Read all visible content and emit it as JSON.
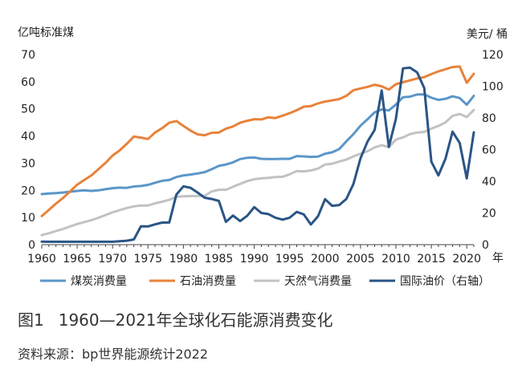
{
  "chart_data": {
    "type": "line",
    "title": "1960—2021年全球化石能源消费变化",
    "figure_number": "图1",
    "source": "资料来源：bp世界能源统计2022",
    "left_unit": "亿吨标准煤",
    "right_unit": "美元/ 桶",
    "x_unit": "年",
    "x_ticks": [
      1960,
      1965,
      1970,
      1975,
      1980,
      1985,
      1990,
      1995,
      2000,
      2005,
      2010,
      2015,
      2020
    ],
    "x_range": [
      1960,
      2021
    ],
    "y_left_range": [
      0,
      70
    ],
    "y_left_ticks": [
      0,
      10,
      20,
      30,
      40,
      50,
      60,
      70
    ],
    "y_right_range": [
      0,
      120
    ],
    "y_right_ticks": [
      0,
      20,
      40,
      60,
      80,
      100,
      120
    ],
    "years": [
      1960,
      1961,
      1962,
      1963,
      1964,
      1965,
      1966,
      1967,
      1968,
      1969,
      1970,
      1971,
      1972,
      1973,
      1974,
      1975,
      1976,
      1977,
      1978,
      1979,
      1980,
      1981,
      1982,
      1983,
      1984,
      1985,
      1986,
      1987,
      1988,
      1989,
      1990,
      1991,
      1992,
      1993,
      1994,
      1995,
      1996,
      1997,
      1998,
      1999,
      2000,
      2001,
      2002,
      2003,
      2004,
      2005,
      2006,
      2007,
      2008,
      2009,
      2010,
      2011,
      2012,
      2013,
      2014,
      2015,
      2016,
      2017,
      2018,
      2019,
      2020,
      2021
    ],
    "series": [
      {
        "name": "煤炭消费量",
        "axis": "left",
        "color": "#5b96c8",
        "values": [
          18.6,
          18.8,
          19.0,
          19.2,
          19.5,
          19.8,
          20.0,
          19.8,
          20.0,
          20.4,
          20.8,
          21.0,
          20.9,
          21.4,
          21.6,
          22.0,
          22.8,
          23.5,
          23.8,
          24.9,
          25.5,
          25.8,
          26.2,
          26.7,
          27.8,
          29.0,
          29.5,
          30.3,
          31.5,
          32.0,
          32.1,
          31.6,
          31.5,
          31.5,
          31.6,
          31.6,
          32.6,
          32.5,
          32.3,
          32.4,
          33.5,
          34.0,
          35.2,
          38.0,
          40.7,
          43.8,
          46.2,
          48.7,
          49.8,
          49.4,
          51.6,
          54.3,
          54.5,
          55.3,
          55.3,
          54.1,
          53.3,
          53.7,
          54.6,
          54.0,
          51.5,
          54.8
        ]
      },
      {
        "name": "石油消费量",
        "axis": "left",
        "color": "#e8823a",
        "values": [
          10.5,
          12.8,
          15.1,
          17.2,
          19.6,
          22.1,
          23.8,
          25.5,
          27.8,
          30.1,
          32.8,
          34.7,
          37.1,
          39.8,
          39.4,
          38.9,
          41.3,
          42.9,
          44.9,
          45.5,
          43.7,
          42.0,
          40.6,
          40.3,
          41.2,
          41.3,
          42.7,
          43.5,
          44.9,
          45.6,
          46.2,
          46.1,
          46.9,
          46.6,
          47.5,
          48.4,
          49.5,
          50.8,
          51.0,
          52.0,
          52.7,
          53.1,
          53.6,
          54.8,
          56.9,
          57.5,
          58.1,
          58.9,
          58.3,
          57.1,
          59.1,
          59.8,
          60.5,
          61.2,
          61.7,
          62.8,
          63.8,
          64.6,
          65.4,
          65.6,
          59.6,
          62.9
        ]
      },
      {
        "name": "天然气消费量",
        "axis": "left",
        "color": "#c2c2c2",
        "values": [
          3.5,
          4.2,
          5.0,
          5.8,
          6.7,
          7.6,
          8.3,
          9.0,
          9.9,
          10.9,
          11.9,
          12.7,
          13.5,
          14.1,
          14.4,
          14.4,
          15.2,
          15.8,
          16.5,
          17.6,
          17.8,
          17.9,
          17.9,
          18.0,
          19.6,
          20.2,
          20.2,
          21.3,
          22.4,
          23.4,
          24.1,
          24.4,
          24.6,
          24.9,
          25.0,
          25.9,
          27.1,
          27.0,
          27.3,
          28.0,
          29.5,
          29.8,
          30.6,
          31.3,
          32.5,
          33.5,
          34.4,
          35.8,
          36.6,
          35.9,
          38.7,
          39.5,
          40.7,
          41.3,
          41.5,
          42.7,
          43.7,
          45.0,
          47.4,
          48.1,
          47.0,
          49.6
        ]
      },
      {
        "name": "国际油价（右轴）",
        "axis": "right",
        "color": "#2a5585",
        "values": [
          1.9,
          1.8,
          1.8,
          1.8,
          1.8,
          1.8,
          1.8,
          1.8,
          1.8,
          1.8,
          1.8,
          2.2,
          2.5,
          3.3,
          11.6,
          11.5,
          12.8,
          13.9,
          14.0,
          31.6,
          36.8,
          35.9,
          32.9,
          29.6,
          28.8,
          27.6,
          14.4,
          18.4,
          14.9,
          18.2,
          23.7,
          20.0,
          19.3,
          17.0,
          15.8,
          17.0,
          20.7,
          19.1,
          12.7,
          17.9,
          28.7,
          24.5,
          25.0,
          28.8,
          38.3,
          54.5,
          65.1,
          72.4,
          97.3,
          61.7,
          79.5,
          111.3,
          111.7,
          108.7,
          98.9,
          52.4,
          43.7,
          54.2,
          71.3,
          64.2,
          41.8,
          70.9
        ]
      }
    ]
  }
}
